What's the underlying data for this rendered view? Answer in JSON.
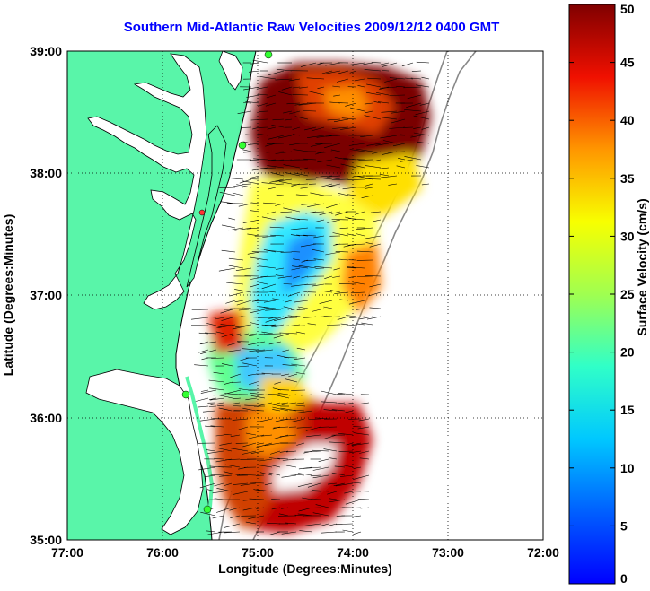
{
  "title": "Southern Mid-Atlantic Raw Velocities 2009/12/12 0400 GMT",
  "map": {
    "xlabel": "Longitude (Degrees:Minutes)",
    "ylabel": "Latitude (Degrees:Minutes)",
    "lon_ticks": [
      "77:00",
      "76:00",
      "75:00",
      "74:00",
      "73:00",
      "72:00"
    ],
    "lat_ticks": [
      "39:00",
      "38:00",
      "37:00",
      "36:00",
      "35:00"
    ],
    "lon_range": [
      -77,
      -72
    ],
    "lat_range": [
      35,
      39
    ],
    "grid": "dotted"
  },
  "colorbar": {
    "label": "Surface Velocity (cm/s)",
    "ticks": [
      "50",
      "45",
      "40",
      "35",
      "30",
      "25",
      "20",
      "15",
      "10",
      "5",
      "0"
    ],
    "range": [
      0,
      50
    ],
    "colormap": "jet"
  },
  "colors": {
    "land": "#59f5a9",
    "title": "#0000ff",
    "water": "#ffffff"
  }
}
